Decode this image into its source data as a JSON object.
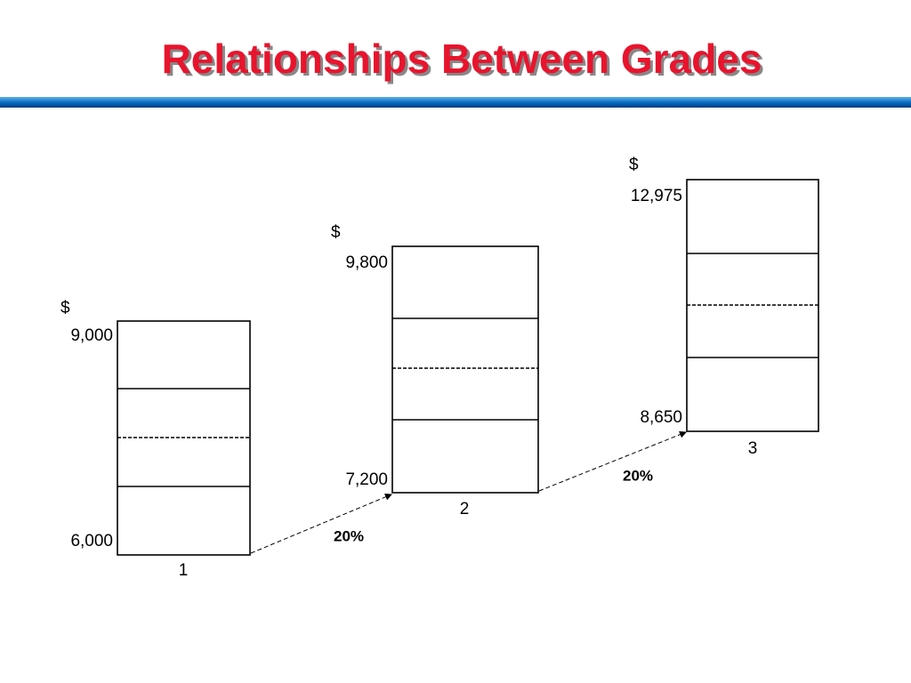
{
  "title": "Relationships Between Grades",
  "grades": [
    {
      "currency": "$",
      "max": "9,000",
      "min": "6,000",
      "grade": "1"
    },
    {
      "currency": "$",
      "max": "9,800",
      "min": "7,200",
      "grade": "2"
    },
    {
      "currency": "$",
      "max": "12,975",
      "min": "8,650",
      "grade": "3"
    }
  ],
  "increases": [
    "20%",
    "20%"
  ]
}
